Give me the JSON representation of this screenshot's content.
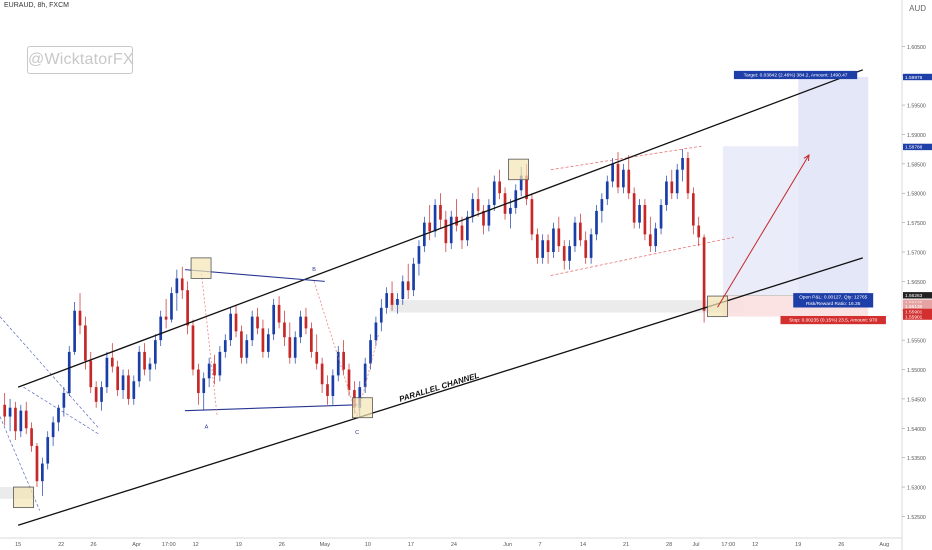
{
  "chart_data": {
    "type": "candlestick",
    "title": "EURAUD, 8h, FXCM",
    "watermark": "@WicktatorFX",
    "currency": "AUD",
    "y_ticks": [
      1.605,
      1.6,
      1.595,
      1.59,
      1.585,
      1.58,
      1.575,
      1.57,
      1.565,
      1.56,
      1.555,
      1.55,
      1.545,
      1.54,
      1.535,
      1.53,
      1.525
    ],
    "y_tick_labels": [
      "1.60500",
      "1.60000",
      "1.59500",
      "1.59000",
      "1.58500",
      "1.58000",
      "1.57500",
      "1.57000",
      "1.56500",
      "1.56000",
      "1.55500",
      "1.55000",
      "1.54500",
      "1.54000",
      "1.53500",
      "1.53000",
      "1.52500"
    ],
    "ylim": [
      1.5215,
      1.6105
    ],
    "x_ticks": [
      {
        "label": "15",
        "slot": 3
      },
      {
        "label": "22",
        "slot": 11
      },
      {
        "label": "26",
        "slot": 17
      },
      {
        "label": "Apr",
        "slot": 25
      },
      {
        "label": "17:00",
        "slot": 31
      },
      {
        "label": "12",
        "slot": 36
      },
      {
        "label": "19",
        "slot": 44
      },
      {
        "label": "26",
        "slot": 52
      },
      {
        "label": "May",
        "slot": 60
      },
      {
        "label": "10",
        "slot": 68
      },
      {
        "label": "17",
        "slot": 76
      },
      {
        "label": "24",
        "slot": 84
      },
      {
        "label": "Jun",
        "slot": 94
      },
      {
        "label": "7",
        "slot": 100
      },
      {
        "label": "14",
        "slot": 108
      },
      {
        "label": "21",
        "slot": 116
      },
      {
        "label": "28",
        "slot": 124
      },
      {
        "label": "Jul",
        "slot": 129
      },
      {
        "label": "17:00",
        "slot": 135
      },
      {
        "label": "12",
        "slot": 140
      },
      {
        "label": "19",
        "slot": 148
      },
      {
        "label": "26",
        "slot": 156
      },
      {
        "label": "Aug",
        "slot": 164
      }
    ],
    "candles": [
      [
        1.544,
        1.546,
        1.5405,
        1.542
      ],
      [
        1.542,
        1.545,
        1.5395,
        1.5435
      ],
      [
        1.5435,
        1.5445,
        1.538,
        1.5395
      ],
      [
        1.5395,
        1.544,
        1.5385,
        1.543
      ],
      [
        1.543,
        1.5445,
        1.539,
        1.54
      ],
      [
        1.54,
        1.541,
        1.536,
        1.537
      ],
      [
        1.537,
        1.5375,
        1.53,
        1.531
      ],
      [
        1.531,
        1.535,
        1.5285,
        1.534
      ],
      [
        1.534,
        1.5395,
        1.533,
        1.5385
      ],
      [
        1.5385,
        1.542,
        1.537,
        1.541
      ],
      [
        1.541,
        1.544,
        1.5395,
        1.5435
      ],
      [
        1.5435,
        1.547,
        1.542,
        1.546
      ],
      [
        1.546,
        1.554,
        1.5455,
        1.553
      ],
      [
        1.553,
        1.5615,
        1.5525,
        1.56
      ],
      [
        1.56,
        1.563,
        1.556,
        1.5575
      ],
      [
        1.5575,
        1.559,
        1.55,
        1.5515
      ],
      [
        1.5515,
        1.553,
        1.546,
        1.547
      ],
      [
        1.547,
        1.548,
        1.5435,
        1.5445
      ],
      [
        1.5445,
        1.548,
        1.543,
        1.547
      ],
      [
        1.547,
        1.553,
        1.546,
        1.552
      ],
      [
        1.552,
        1.5545,
        1.5495,
        1.5505
      ],
      [
        1.5505,
        1.5515,
        1.5455,
        1.5465
      ],
      [
        1.5465,
        1.55,
        1.545,
        1.549
      ],
      [
        1.549,
        1.55,
        1.544,
        1.545
      ],
      [
        1.545,
        1.549,
        1.544,
        1.548
      ],
      [
        1.548,
        1.554,
        1.547,
        1.553
      ],
      [
        1.553,
        1.5545,
        1.549,
        1.55
      ],
      [
        1.55,
        1.552,
        1.548,
        1.551
      ],
      [
        1.551,
        1.556,
        1.55,
        1.555
      ],
      [
        1.555,
        1.56,
        1.554,
        1.559
      ],
      [
        1.559,
        1.562,
        1.557,
        1.5585
      ],
      [
        1.5585,
        1.564,
        1.558,
        1.563
      ],
      [
        1.563,
        1.567,
        1.56,
        1.5655
      ],
      [
        1.5655,
        1.5675,
        1.562,
        1.5635
      ],
      [
        1.5635,
        1.565,
        1.556,
        1.5575
      ],
      [
        1.5575,
        1.5585,
        1.549,
        1.55
      ],
      [
        1.55,
        1.551,
        1.544,
        1.546
      ],
      [
        1.546,
        1.5495,
        1.543,
        1.5485
      ],
      [
        1.5485,
        1.552,
        1.547,
        1.551
      ],
      [
        1.551,
        1.5525,
        1.5475,
        1.549
      ],
      [
        1.549,
        1.554,
        1.548,
        1.553
      ],
      [
        1.553,
        1.556,
        1.552,
        1.555
      ],
      [
        1.555,
        1.5605,
        1.554,
        1.5595
      ],
      [
        1.5595,
        1.561,
        1.5555,
        1.5565
      ],
      [
        1.5565,
        1.5575,
        1.551,
        1.552
      ],
      [
        1.552,
        1.556,
        1.551,
        1.555
      ],
      [
        1.555,
        1.56,
        1.554,
        1.559
      ],
      [
        1.559,
        1.5605,
        1.556,
        1.557
      ],
      [
        1.557,
        1.5585,
        1.552,
        1.553
      ],
      [
        1.553,
        1.557,
        1.552,
        1.556
      ],
      [
        1.556,
        1.562,
        1.555,
        1.561
      ],
      [
        1.561,
        1.5625,
        1.557,
        1.558
      ],
      [
        1.558,
        1.56,
        1.554,
        1.5555
      ],
      [
        1.5555,
        1.558,
        1.551,
        1.552
      ],
      [
        1.552,
        1.5565,
        1.551,
        1.5555
      ],
      [
        1.5555,
        1.56,
        1.5545,
        1.559
      ],
      [
        1.559,
        1.5605,
        1.556,
        1.557
      ],
      [
        1.557,
        1.558,
        1.552,
        1.553
      ],
      [
        1.553,
        1.556,
        1.55,
        1.551
      ],
      [
        1.551,
        1.552,
        1.546,
        1.5475
      ],
      [
        1.5475,
        1.549,
        1.544,
        1.5455
      ],
      [
        1.5455,
        1.55,
        1.544,
        1.549
      ],
      [
        1.549,
        1.554,
        1.548,
        1.553
      ],
      [
        1.553,
        1.555,
        1.549,
        1.55
      ],
      [
        1.55,
        1.551,
        1.5455,
        1.5465
      ],
      [
        1.5465,
        1.548,
        1.5425,
        1.5435
      ],
      [
        1.5435,
        1.548,
        1.542,
        1.547
      ],
      [
        1.547,
        1.552,
        1.546,
        1.551
      ],
      [
        1.551,
        1.556,
        1.55,
        1.555
      ],
      [
        1.555,
        1.559,
        1.554,
        1.558
      ],
      [
        1.558,
        1.562,
        1.5565,
        1.5605
      ],
      [
        1.5605,
        1.564,
        1.5595,
        1.563
      ],
      [
        1.563,
        1.565,
        1.56,
        1.561
      ],
      [
        1.561,
        1.563,
        1.5595,
        1.562
      ],
      [
        1.562,
        1.566,
        1.561,
        1.565
      ],
      [
        1.565,
        1.568,
        1.562,
        1.5635
      ],
      [
        1.5635,
        1.569,
        1.5625,
        1.568
      ],
      [
        1.568,
        1.572,
        1.566,
        1.571
      ],
      [
        1.571,
        1.576,
        1.57,
        1.575
      ],
      [
        1.575,
        1.578,
        1.572,
        1.5735
      ],
      [
        1.5735,
        1.579,
        1.5725,
        1.578
      ],
      [
        1.578,
        1.58,
        1.574,
        1.5755
      ],
      [
        1.5755,
        1.577,
        1.57,
        1.5715
      ],
      [
        1.5715,
        1.577,
        1.5705,
        1.576
      ],
      [
        1.576,
        1.579,
        1.5735,
        1.5745
      ],
      [
        1.5745,
        1.576,
        1.5705,
        1.572
      ],
      [
        1.572,
        1.577,
        1.571,
        1.576
      ],
      [
        1.576,
        1.58,
        1.575,
        1.579
      ],
      [
        1.579,
        1.581,
        1.576,
        1.577
      ],
      [
        1.577,
        1.578,
        1.573,
        1.5745
      ],
      [
        1.5745,
        1.579,
        1.5735,
        1.578
      ],
      [
        1.578,
        1.583,
        1.577,
        1.582
      ],
      [
        1.582,
        1.584,
        1.579,
        1.58
      ],
      [
        1.58,
        1.581,
        1.5755,
        1.5765
      ],
      [
        1.5765,
        1.579,
        1.574,
        1.5775
      ],
      [
        1.5775,
        1.5815,
        1.5765,
        1.5805
      ],
      [
        1.5805,
        1.5845,
        1.5795,
        1.583
      ],
      [
        1.583,
        1.585,
        1.578,
        1.579
      ],
      [
        1.579,
        1.58,
        1.572,
        1.573
      ],
      [
        1.573,
        1.574,
        1.568,
        1.569
      ],
      [
        1.569,
        1.573,
        1.568,
        1.572
      ],
      [
        1.572,
        1.573,
        1.568,
        1.57
      ],
      [
        1.57,
        1.575,
        1.569,
        1.574
      ],
      [
        1.574,
        1.576,
        1.57,
        1.571
      ],
      [
        1.571,
        1.572,
        1.567,
        1.5685
      ],
      [
        1.5685,
        1.572,
        1.567,
        1.571
      ],
      [
        1.571,
        1.576,
        1.57,
        1.575
      ],
      [
        1.575,
        1.5765,
        1.571,
        1.572
      ],
      [
        1.572,
        1.5735,
        1.568,
        1.569
      ],
      [
        1.569,
        1.574,
        1.568,
        1.573
      ],
      [
        1.573,
        1.578,
        1.572,
        1.577
      ],
      [
        1.577,
        1.58,
        1.575,
        1.579
      ],
      [
        1.579,
        1.583,
        1.578,
        1.582
      ],
      [
        1.582,
        1.586,
        1.581,
        1.585
      ],
      [
        1.585,
        1.587,
        1.58,
        1.581
      ],
      [
        1.581,
        1.585,
        1.58,
        1.584
      ],
      [
        1.584,
        1.5865,
        1.579,
        1.58
      ],
      [
        1.58,
        1.581,
        1.574,
        1.575
      ],
      [
        1.575,
        1.579,
        1.574,
        1.578
      ],
      [
        1.578,
        1.579,
        1.572,
        1.573
      ],
      [
        1.573,
        1.576,
        1.57,
        1.571
      ],
      [
        1.571,
        1.575,
        1.57,
        1.574
      ],
      [
        1.574,
        1.579,
        1.573,
        1.578
      ],
      [
        1.578,
        1.583,
        1.577,
        1.582
      ],
      [
        1.582,
        1.584,
        1.579,
        1.58
      ],
      [
        1.58,
        1.585,
        1.579,
        1.584
      ],
      [
        1.584,
        1.5875,
        1.582,
        1.586
      ],
      [
        1.586,
        1.587,
        1.579,
        1.58
      ],
      [
        1.58,
        1.581,
        1.573,
        1.5745
      ],
      [
        1.5745,
        1.576,
        1.571,
        1.5725
      ],
      [
        1.5725,
        1.573,
        1.558,
        1.56
      ]
    ],
    "channel_upper": {
      "from": {
        "slot": 3,
        "price": 1.547
      },
      "to": {
        "slot": 160,
        "price": 1.601
      }
    },
    "channel_lower": {
      "from": {
        "slot": 3,
        "price": 1.5235
      },
      "to": {
        "slot": 160,
        "price": 1.569
      }
    },
    "channel_label": "PARALLEL CHANNEL",
    "waves": [
      {
        "label": "A",
        "slot": 38,
        "price": 1.54
      },
      {
        "label": "B",
        "slot": 58,
        "price": 1.5668
      },
      {
        "label": "C",
        "slot": 66,
        "price": 1.539
      }
    ],
    "triangle_top": {
      "from": {
        "slot": 34,
        "price": 1.567
      },
      "to": {
        "slot": 60,
        "price": 1.565
      }
    },
    "triangle_bottom": {
      "from": {
        "slot": 34,
        "price": 1.543
      },
      "to": {
        "slot": 66,
        "price": 1.544
      }
    },
    "flag_top": {
      "from": {
        "slot": 102,
        "price": 1.584
      },
      "to": {
        "slot": 130,
        "price": 1.588
      }
    },
    "flag_bottom": {
      "from": {
        "slot": 102,
        "price": 1.566
      },
      "to": {
        "slot": 136,
        "price": 1.5725
      }
    },
    "zones": [
      {
        "slot": 4,
        "price_top": 1.53,
        "price_bottom": 1.5265
      },
      {
        "slot": 37,
        "price_top": 1.569,
        "price_bottom": 1.5655
      },
      {
        "slot": 67,
        "price_top": 1.5452,
        "price_bottom": 1.5418
      },
      {
        "slot": 96,
        "price_top": 1.5858,
        "price_bottom": 1.5823
      },
      {
        "slot": 133,
        "price_top": 1.5625,
        "price_bottom": 1.559
      }
    ],
    "support_band": {
      "price_top": 1.5618,
      "price_bottom": 1.5597
    },
    "position": {
      "entry": 1.56263,
      "target": 1.59978,
      "stop": 1.55901,
      "target_label": "Target: 0.03842 (2.46%) 384.2, Amount: 1490.47",
      "open_label": "Open P&L: 0.00127, Qty: 12765",
      "rr_label": "Risk/Reward Ratio: 16.35",
      "stop_label": "Stop: 0.00235 (0.15%) 23.5, Amount: 970"
    },
    "forecast_arrow": {
      "from": {
        "slot": 133,
        "price": 1.5606
      },
      "to": {
        "slot": 150,
        "price": 1.5865
      }
    },
    "price_tags": [
      {
        "label": "1.59978",
        "color": "#1e3ea8"
      },
      {
        "label": "1.58788",
        "color": "#1e3ea8"
      },
      {
        "label": "1.56263",
        "color": "#222222"
      },
      {
        "label": "1.56136",
        "color": "#e6a3a3"
      },
      {
        "label": "1.56136",
        "color": "#e6a3a3"
      },
      {
        "label": "1.55901",
        "color": "#d32f2f"
      },
      {
        "label": "1.55901",
        "color": "#d32f2f"
      }
    ]
  }
}
